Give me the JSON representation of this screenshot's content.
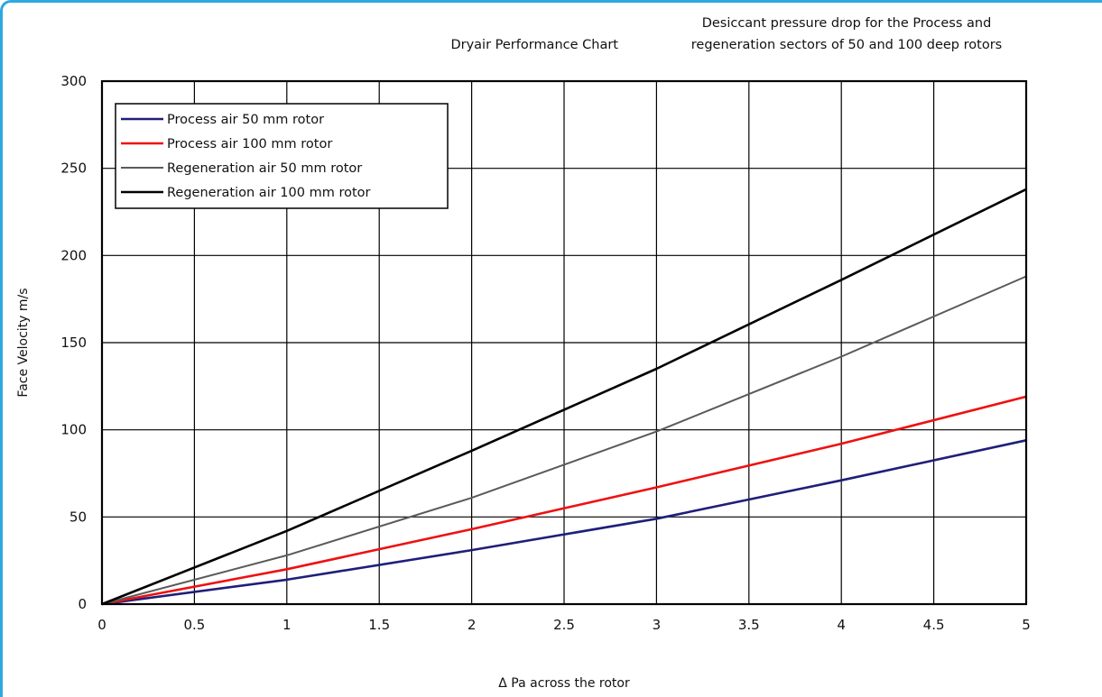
{
  "chart_data": {
    "type": "line",
    "title": "Dryair Performance Chart",
    "subtitle": "Desiccant pressure drop for the Process and regeneration sectors of 50 and 100 deep rotors",
    "subtitle_lines": [
      "Desiccant pressure drop for the Process and",
      "regeneration sectors of 50 and 100 deep rotors"
    ],
    "xlabel": "Δ Pa across the rotor",
    "ylabel": "Face Velocity m/s",
    "xlim": [
      0,
      5
    ],
    "ylim": [
      0,
      300
    ],
    "x_ticks": [
      "0",
      "0.5",
      "1",
      "1.5",
      "2",
      "2.5",
      "3",
      "3.5",
      "4",
      "4.5",
      "5"
    ],
    "y_ticks": [
      "0",
      "50",
      "100",
      "150",
      "200",
      "250",
      "300"
    ],
    "grid": true,
    "legend_position": "top-left",
    "x": [
      0,
      1,
      2,
      3,
      4,
      5
    ],
    "series": [
      {
        "name": "Process air 50 mm rotor",
        "color": "#1f1f7a",
        "values": [
          0,
          14,
          31,
          49,
          71,
          94
        ]
      },
      {
        "name": "Process air 100 mm rotor",
        "color": "#ee1111",
        "values": [
          0,
          20,
          43,
          67,
          92,
          119
        ]
      },
      {
        "name": "Regeneration air 50 mm rotor",
        "color": "#5a5a5a",
        "values": [
          0,
          28,
          61,
          99,
          142,
          188
        ]
      },
      {
        "name": "Regeneration air 100 mm rotor",
        "color": "#000000",
        "values": [
          0,
          42,
          88,
          135,
          186,
          238
        ]
      }
    ]
  }
}
